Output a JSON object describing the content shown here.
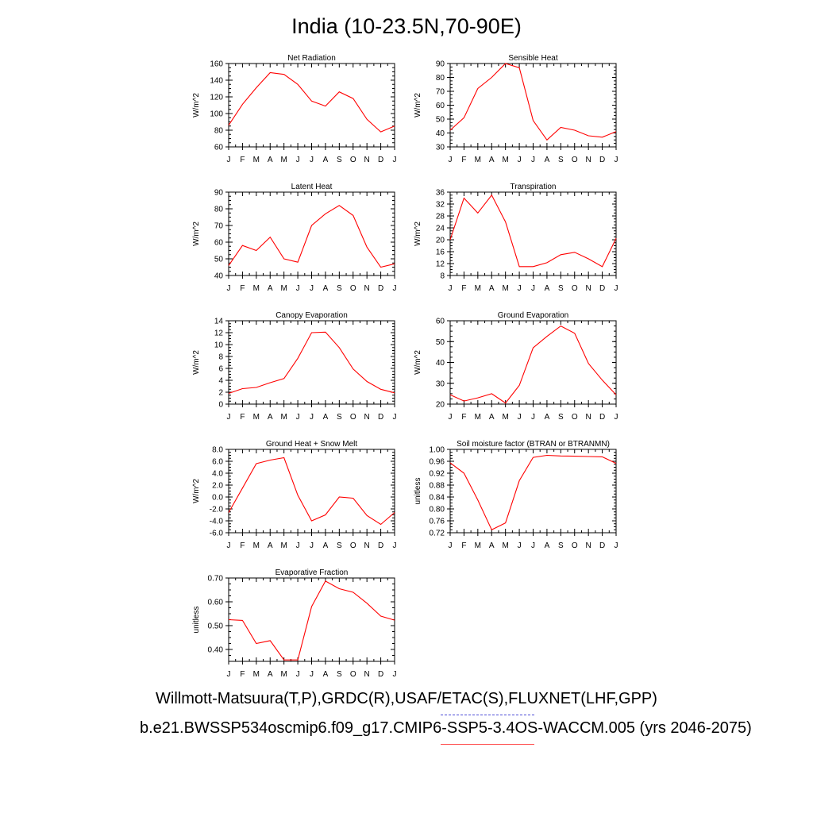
{
  "title": "India (10-23.5N,70-90E)",
  "legend": {
    "obs_sources": "Willmott-Matsuura(T,P),GRDC(R),USAF/ETAC(S),FLUXNET(LHF,GPP)",
    "model_case": "b.e21.BWSSP534oscmip6.f09_g17.CMIP6-SSP5-3.4OS-WACCM.005 (yrs 2046-2075)",
    "obs_color": "#4b4bd6",
    "model_color": "#ff0000"
  },
  "chart_data": [
    {
      "type": "line",
      "title": "Net Radiation",
      "ylabel": "W/m^2",
      "categories": [
        "J",
        "F",
        "M",
        "A",
        "M",
        "J",
        "J",
        "A",
        "S",
        "O",
        "N",
        "D",
        "J"
      ],
      "yticks": [
        "60",
        "80",
        "100",
        "120",
        "140",
        "160"
      ],
      "ylim": [
        60,
        160
      ],
      "series": [
        {
          "values": [
            86,
            111,
            131,
            149,
            147,
            135,
            115,
            109,
            126,
            118,
            93,
            78,
            85
          ]
        }
      ]
    },
    {
      "type": "line",
      "title": "Sensible Heat",
      "ylabel": "W/m^2",
      "categories": [
        "J",
        "F",
        "M",
        "A",
        "M",
        "J",
        "J",
        "A",
        "S",
        "O",
        "N",
        "D",
        "J"
      ],
      "yticks": [
        "30",
        "40",
        "50",
        "60",
        "70",
        "80",
        "90"
      ],
      "ylim": [
        30,
        90
      ],
      "series": [
        {
          "values": [
            42,
            51,
            72,
            80,
            90,
            87,
            49,
            35,
            44,
            42,
            38,
            37,
            41
          ]
        }
      ]
    },
    {
      "type": "line",
      "title": "Latent Heat",
      "ylabel": "W/m^2",
      "categories": [
        "J",
        "F",
        "M",
        "A",
        "M",
        "J",
        "J",
        "A",
        "S",
        "O",
        "N",
        "D",
        "J"
      ],
      "yticks": [
        "40",
        "50",
        "60",
        "70",
        "80",
        "90"
      ],
      "ylim": [
        40,
        90
      ],
      "series": [
        {
          "values": [
            46,
            58,
            55,
            63,
            50,
            48,
            70,
            77,
            82,
            76,
            57,
            45,
            47
          ]
        }
      ]
    },
    {
      "type": "line",
      "title": "Transpiration",
      "ylabel": "W/m^2",
      "categories": [
        "J",
        "F",
        "M",
        "A",
        "M",
        "J",
        "J",
        "A",
        "S",
        "O",
        "N",
        "D",
        "J"
      ],
      "yticks": [
        "8",
        "12",
        "16",
        "20",
        "24",
        "28",
        "32",
        "36"
      ],
      "ylim": [
        8,
        36
      ],
      "series": [
        {
          "values": [
            20,
            34,
            29,
            35,
            26,
            11,
            11,
            12.3,
            15,
            15.8,
            13.6,
            11,
            20.5
          ]
        }
      ]
    },
    {
      "type": "line",
      "title": "Canopy Evaporation",
      "ylabel": "W/m^2",
      "categories": [
        "J",
        "F",
        "M",
        "A",
        "M",
        "J",
        "J",
        "A",
        "S",
        "O",
        "N",
        "D",
        "J"
      ],
      "yticks": [
        "0",
        "2",
        "4",
        "6",
        "8",
        "10",
        "12",
        "14"
      ],
      "ylim": [
        0,
        14
      ],
      "series": [
        {
          "values": [
            1.8,
            2.6,
            2.8,
            3.6,
            4.3,
            7.7,
            12,
            12.1,
            9.5,
            5.9,
            3.8,
            2.5,
            1.9
          ]
        }
      ]
    },
    {
      "type": "line",
      "title": "Ground Evaporation",
      "ylabel": "W/m^2",
      "categories": [
        "J",
        "F",
        "M",
        "A",
        "M",
        "J",
        "J",
        "A",
        "S",
        "O",
        "N",
        "D",
        "J"
      ],
      "yticks": [
        "20",
        "30",
        "40",
        "50",
        "60"
      ],
      "ylim": [
        20,
        60
      ],
      "series": [
        {
          "values": [
            24.5,
            21.5,
            23,
            25,
            20.5,
            29,
            47,
            52.5,
            57.5,
            54,
            39.5,
            31.5,
            24.5
          ]
        }
      ]
    },
    {
      "type": "line",
      "title": "Ground Heat + Snow Melt",
      "ylabel": "W/m^2",
      "categories": [
        "J",
        "F",
        "M",
        "A",
        "M",
        "J",
        "J",
        "A",
        "S",
        "O",
        "N",
        "D",
        "J"
      ],
      "yticks": [
        "-6.0",
        "-4.0",
        "-2.0",
        "0.0",
        "2.0",
        "4.0",
        "6.0",
        "8.0"
      ],
      "ylim": [
        -6,
        8
      ],
      "series": [
        {
          "values": [
            -2.6,
            1.5,
            5.6,
            6.2,
            6.6,
            0.3,
            -4.0,
            -3.0,
            0.0,
            -0.2,
            -3.1,
            -4.6,
            -2.6
          ]
        }
      ]
    },
    {
      "type": "line",
      "title": "Soil moisture factor (BTRAN or BTRANMN)",
      "ylabel": "unitless",
      "categories": [
        "J",
        "F",
        "M",
        "A",
        "M",
        "J",
        "J",
        "A",
        "S",
        "O",
        "N",
        "D",
        "J"
      ],
      "yticks": [
        "0.72",
        "0.76",
        "0.80",
        "0.84",
        "0.88",
        "0.92",
        "0.96",
        "1.00"
      ],
      "ylim": [
        0.72,
        1.0
      ],
      "series": [
        {
          "values": [
            0.955,
            0.92,
            0.83,
            0.73,
            0.753,
            0.895,
            0.973,
            0.98,
            0.978,
            0.977,
            0.976,
            0.975,
            0.953
          ]
        }
      ]
    },
    {
      "type": "line",
      "title": "Evaporative Fraction",
      "ylabel": "unitless",
      "categories": [
        "J",
        "F",
        "M",
        "A",
        "M",
        "J",
        "J",
        "A",
        "S",
        "O",
        "N",
        "D",
        "J"
      ],
      "yticks": [
        "0.40",
        "0.50",
        "0.60",
        "0.70"
      ],
      "ylim": [
        0.35,
        0.7
      ],
      "series": [
        {
          "values": [
            0.525,
            0.522,
            0.425,
            0.437,
            0.356,
            0.356,
            0.58,
            0.687,
            0.655,
            0.64,
            0.594,
            0.54,
            0.523
          ]
        }
      ]
    }
  ]
}
